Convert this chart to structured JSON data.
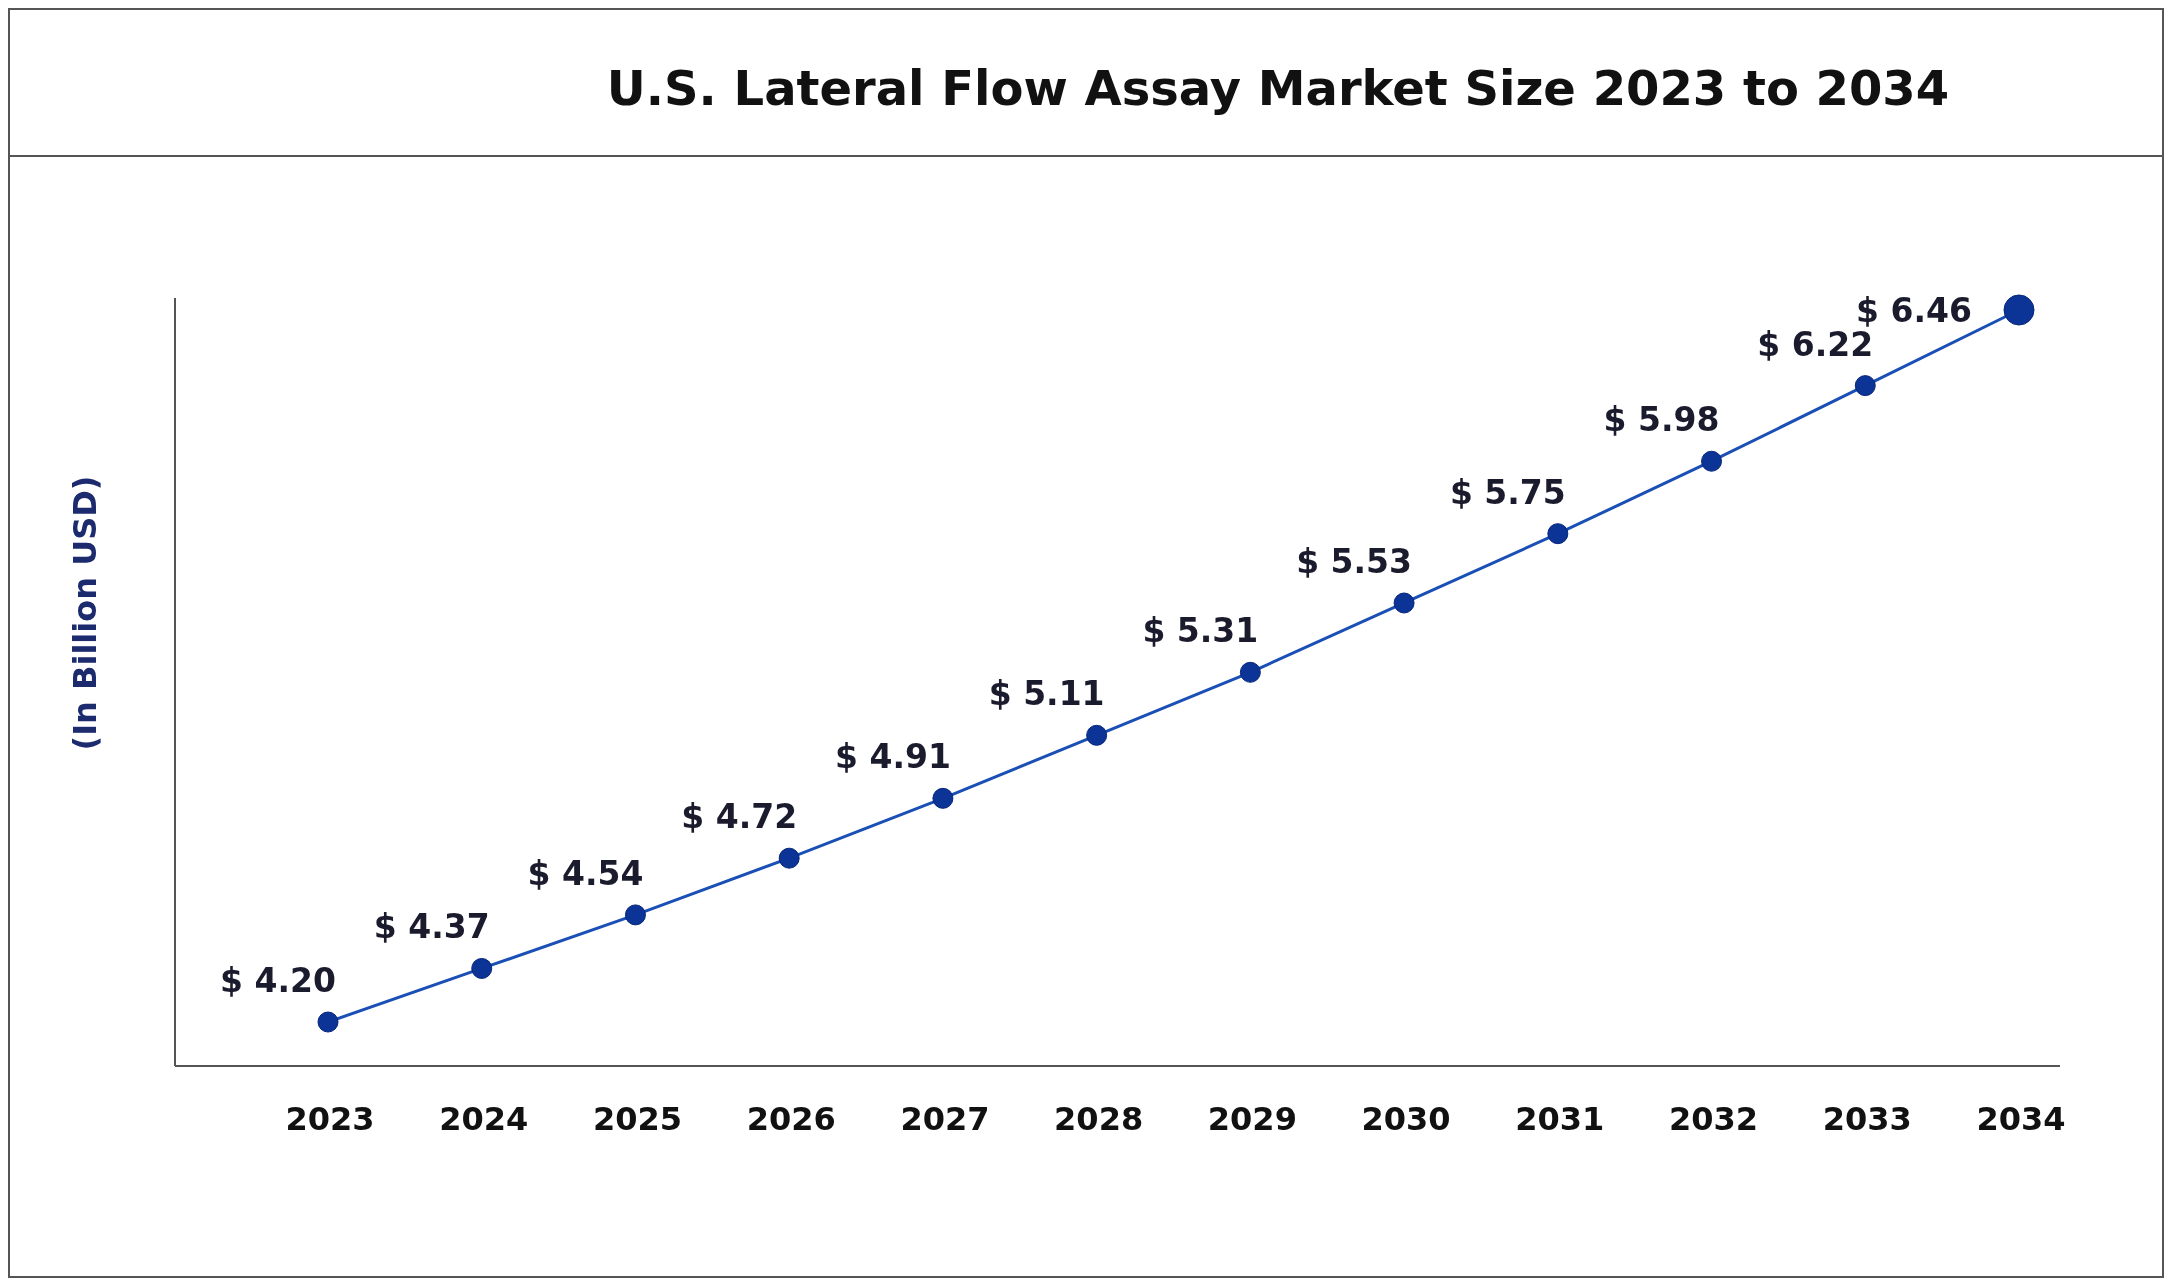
{
  "chart_data": {
    "type": "line",
    "title": "U.S. Lateral Flow Assay Market Size 2023 to 2034",
    "ylabel": "(In Billion USD)",
    "categories": [
      "2023",
      "2024",
      "2025",
      "2026",
      "2027",
      "2028",
      "2029",
      "2030",
      "2031",
      "2032",
      "2033",
      "2034"
    ],
    "series": [
      {
        "color": "#1a4fb5",
        "values": [
          4.2,
          4.37,
          4.54,
          4.72,
          4.91,
          5.11,
          5.31,
          5.53,
          5.75,
          5.98,
          6.22,
          6.46
        ],
        "value_labels": [
          "$ 4.20",
          "$ 4.37",
          "$ 4.54",
          "$ 4.72",
          "$ 4.91",
          "$ 5.11",
          "$ 5.31",
          "$ 5.53",
          "$ 5.75",
          "$ 5.98",
          "$ 6.22",
          "$ 6.46"
        ]
      }
    ],
    "marker": "circle",
    "line_style": "solid"
  }
}
